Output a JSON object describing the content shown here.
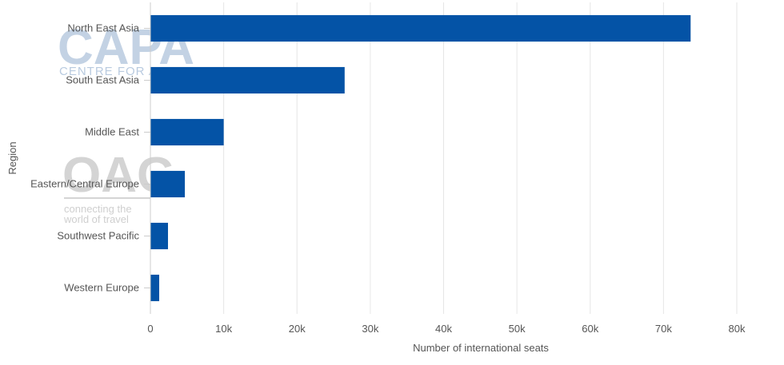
{
  "chart_data": {
    "type": "bar",
    "orientation": "horizontal",
    "categories": [
      "North East Asia",
      "South East Asia",
      "Middle East",
      "Eastern/Central Europe",
      "Southwest Pacific",
      "Western Europe"
    ],
    "values": [
      73700,
      26500,
      10000,
      4700,
      2400,
      1200
    ],
    "xlabel": "Number of international seats",
    "ylabel": "Region",
    "xlim": [
      0,
      80000
    ],
    "x_ticks": [
      0,
      10000,
      20000,
      30000,
      40000,
      50000,
      60000,
      70000,
      80000
    ],
    "x_tick_labels": [
      "0",
      "10k",
      "20k",
      "30k",
      "40k",
      "50k",
      "60k",
      "70k",
      "80k"
    ],
    "grid": "vertical",
    "legend": "none",
    "bar_color": "#0453a6"
  },
  "watermarks": {
    "capa": {
      "logo_text": "CAPA",
      "subtitle": "CENTRE FOR AVIATION"
    },
    "oag": {
      "logo_text": "OAG",
      "tagline_line1": "connecting the",
      "tagline_line2": "world of travel"
    }
  }
}
